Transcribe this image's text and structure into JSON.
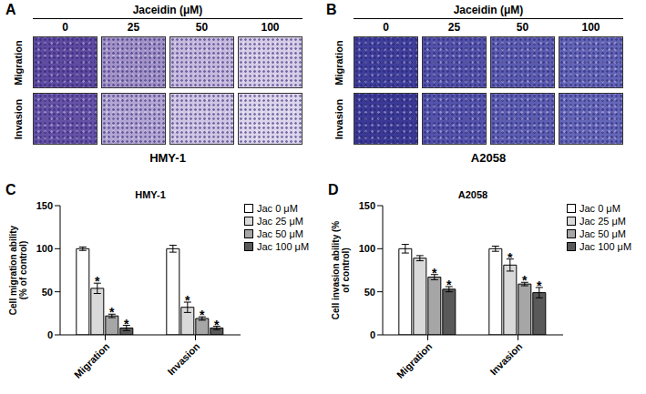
{
  "panels": [
    {
      "panel_label": "A",
      "header": "Jaceidin (μM)",
      "columns": [
        0,
        25,
        50,
        100
      ],
      "rows": [
        "Migration",
        "Invasion"
      ],
      "caption": "HMY-1"
    },
    {
      "panel_label": "B",
      "header": "Jaceidin (μM)",
      "columns": [
        0,
        25,
        50,
        100
      ],
      "rows": [
        "Migration",
        "Invasion"
      ],
      "caption": "A2058"
    }
  ],
  "chart_data": [
    {
      "panel_label": "C",
      "type": "bar",
      "title": "HMY-1",
      "y_label": "Cell migration ability (% of control)",
      "categories": [
        "Migration",
        "Invasion"
      ],
      "series": [
        {
          "name": "Jac 0 μM",
          "color": "#ffffff",
          "values": [
            100,
            100
          ],
          "errors": [
            2,
            4
          ],
          "significance": [
            null,
            null
          ]
        },
        {
          "name": "Jac 25 μM",
          "color": "#d9d9d9",
          "values": [
            54,
            32
          ],
          "errors": [
            6,
            6
          ],
          "significance": [
            "*",
            "*"
          ]
        },
        {
          "name": "Jac 50 μM",
          "color": "#a6a6a6",
          "values": [
            22,
            19
          ],
          "errors": [
            2,
            2
          ],
          "significance": [
            "*",
            "*"
          ]
        },
        {
          "name": "Jac 100 μM",
          "color": "#595959",
          "values": [
            8,
            8
          ],
          "errors": [
            3,
            2
          ],
          "significance": [
            "*",
            "*"
          ]
        }
      ],
      "ylim": [
        0,
        150
      ],
      "yticks": [
        0,
        50,
        100,
        150
      ],
      "grid": false,
      "legend": "top right"
    },
    {
      "panel_label": "D",
      "type": "bar",
      "title": "A2058",
      "y_label": "Cell invasion ability (% of control)",
      "categories": [
        "Migration",
        "Invasion"
      ],
      "series": [
        {
          "name": "Jac 0 μM",
          "color": "#ffffff",
          "values": [
            100,
            100
          ],
          "errors": [
            5,
            3
          ],
          "significance": [
            null,
            null
          ]
        },
        {
          "name": "Jac 25 μM",
          "color": "#d9d9d9",
          "values": [
            89,
            81
          ],
          "errors": [
            3,
            7
          ],
          "significance": [
            null,
            "*"
          ]
        },
        {
          "name": "Jac 50 μM",
          "color": "#a6a6a6",
          "values": [
            67,
            59
          ],
          "errors": [
            3,
            2
          ],
          "significance": [
            "*",
            "*"
          ]
        },
        {
          "name": "Jac 100 μM",
          "color": "#595959",
          "values": [
            53,
            49
          ],
          "errors": [
            3,
            6
          ],
          "significance": [
            "*",
            "*"
          ]
        }
      ],
      "ylim": [
        0,
        150
      ],
      "yticks": [
        0,
        50,
        100,
        150
      ],
      "grid": false,
      "legend": "top right"
    }
  ]
}
